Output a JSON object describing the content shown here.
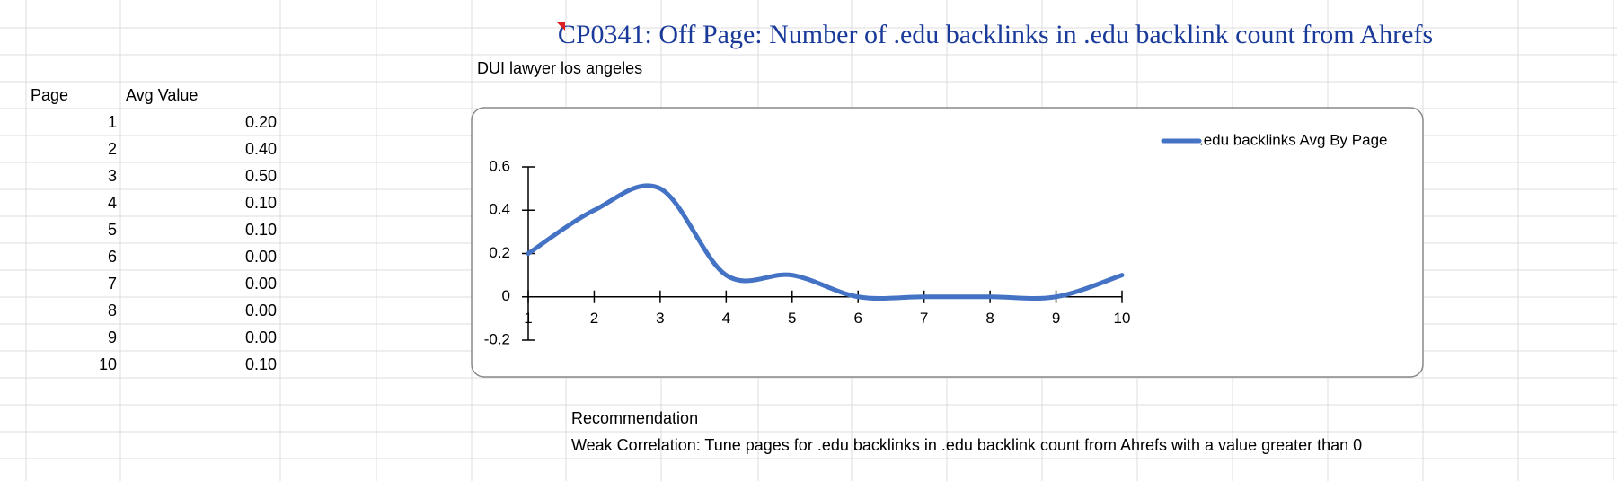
{
  "title": "CP0341: Off Page: Number of .edu backlinks in .edu backlink count from Ahrefs",
  "subtitle": "DUI lawyer los angeles",
  "table": {
    "header": [
      "Page",
      "Avg Value"
    ],
    "rows": [
      [
        "1",
        "0.20"
      ],
      [
        "2",
        "0.40"
      ],
      [
        "3",
        "0.50"
      ],
      [
        "4",
        "0.10"
      ],
      [
        "5",
        "0.10"
      ],
      [
        "6",
        "0.00"
      ],
      [
        "7",
        "0.00"
      ],
      [
        "8",
        "0.00"
      ],
      [
        "9",
        "0.00"
      ],
      [
        "10",
        "0.10"
      ]
    ]
  },
  "chart_data": {
    "type": "line",
    "smooth": true,
    "x": [
      1,
      2,
      3,
      4,
      5,
      6,
      7,
      8,
      9,
      10
    ],
    "series": [
      {
        "name": ".edu backlinks Avg By Page",
        "color": "#4472c4",
        "values": [
          0.2,
          0.4,
          0.5,
          0.1,
          0.1,
          0,
          0,
          0,
          0,
          0.1
        ]
      }
    ],
    "xlim": [
      1,
      10
    ],
    "xticks": [
      1,
      2,
      3,
      4,
      5,
      6,
      7,
      8,
      9,
      10
    ],
    "ylim": [
      -0.2,
      0.6
    ],
    "yticks": [
      -0.2,
      0,
      0.2,
      0.4,
      0.6
    ],
    "legend": "top-right"
  },
  "recommendation": {
    "label": "Recommendation",
    "text": "Weak Correlation: Tune pages for .edu backlinks in .edu backlink count from Ahrefs with a value greater than 0"
  }
}
